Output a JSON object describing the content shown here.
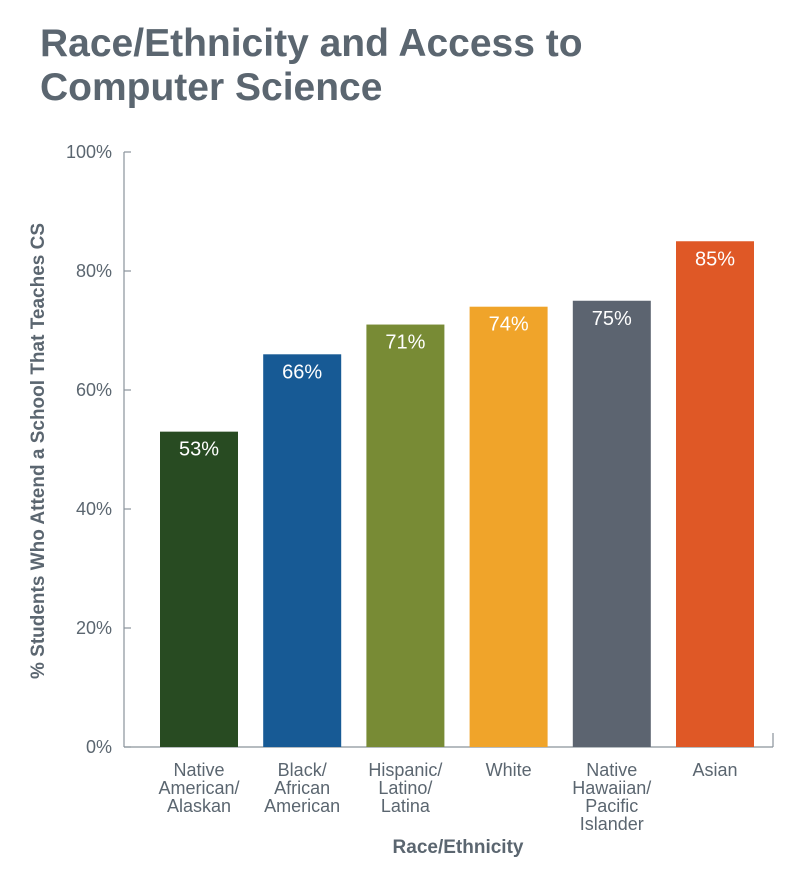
{
  "chart_data": {
    "type": "bar",
    "title_lines": [
      "Race/Ethnicity and Access to",
      "Computer Science"
    ],
    "xlabel": "Race/Ethnicity",
    "ylabel": "% Students Who Attend a School That Teaches CS",
    "ylim": [
      0,
      100
    ],
    "y_ticks": [
      0,
      20,
      40,
      60,
      80,
      100
    ],
    "y_tick_labels": [
      "0%",
      "20%",
      "40%",
      "60%",
      "80%",
      "100%"
    ],
    "grid": false,
    "categories": [
      [
        "Native",
        "American/",
        "Alaskan"
      ],
      [
        "Black/",
        "African",
        "American"
      ],
      [
        "Hispanic/",
        "Latino/",
        "Latina"
      ],
      [
        "White"
      ],
      [
        "Native",
        "Hawaiian/",
        "Pacific",
        "Islander"
      ],
      [
        "Asian"
      ]
    ],
    "values": [
      53,
      66,
      71,
      74,
      75,
      85
    ],
    "value_labels": [
      "53%",
      "66%",
      "71%",
      "74%",
      "75%",
      "85%"
    ],
    "colors": [
      "#284b22",
      "#175a95",
      "#788b35",
      "#f0a42a",
      "#5c6470",
      "#df5826"
    ]
  }
}
